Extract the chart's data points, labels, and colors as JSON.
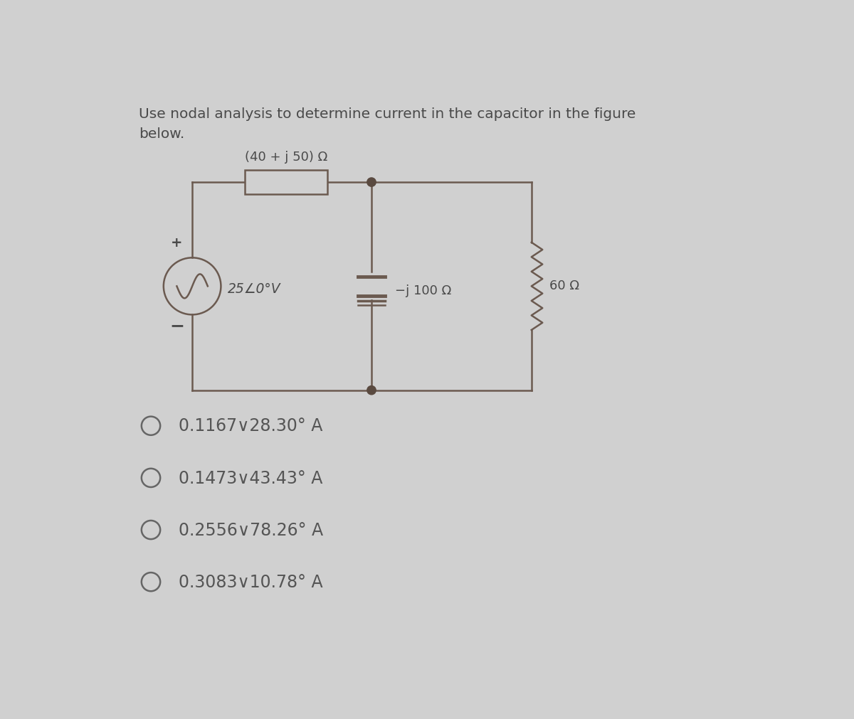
{
  "title_line1": "Use nodal analysis to determine current in the capacitor in the figure",
  "title_line2": "below.",
  "title_fontsize": 14.5,
  "bg_color": "#d0d0d0",
  "options": [
    "0.1167∨28.30° A",
    "0.1473∨43.43° A",
    "0.2556∨78.26° A",
    "0.3083∨10.78° A"
  ],
  "option_fontsize": 17,
  "impedance_label": "(40 + j 50) Ω",
  "capacitor_label": "−j 100 Ω",
  "resistor_label": "60 Ω",
  "source_label": "25∠0°V",
  "plus_label": "+",
  "minus_label": "−",
  "wire_color": "#6b5a50",
  "text_color": "#4a4a4a",
  "opt_text_color": "#555555",
  "node_color": "#5a4a40"
}
